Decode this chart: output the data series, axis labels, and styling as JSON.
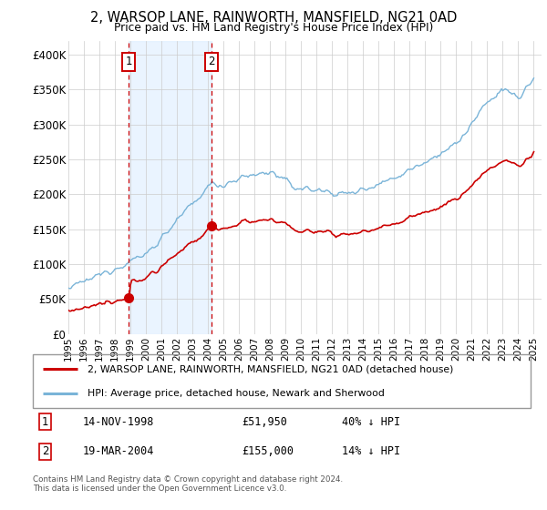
{
  "title1": "2, WARSOP LANE, RAINWORTH, MANSFIELD, NG21 0AD",
  "title2": "Price paid vs. HM Land Registry's House Price Index (HPI)",
  "ylim": [
    0,
    420000
  ],
  "yticks": [
    0,
    50000,
    100000,
    150000,
    200000,
    250000,
    300000,
    350000,
    400000
  ],
  "ytick_labels": [
    "£0",
    "£50K",
    "£100K",
    "£150K",
    "£200K",
    "£250K",
    "£300K",
    "£350K",
    "£400K"
  ],
  "hpi_color": "#7ab4d8",
  "price_color": "#cc0000",
  "purchase1_date": 1998.88,
  "purchase1_price": 51950,
  "purchase2_date": 2004.22,
  "purchase2_price": 155000,
  "legend_label1": "2, WARSOP LANE, RAINWORTH, MANSFIELD, NG21 0AD (detached house)",
  "legend_label2": "HPI: Average price, detached house, Newark and Sherwood",
  "footnote": "Contains HM Land Registry data © Crown copyright and database right 2024.\nThis data is licensed under the Open Government Licence v3.0.",
  "bg_shade_color": "#ddeeff",
  "vline_color": "#cc0000",
  "xstart": 1995,
  "xend": 2025
}
